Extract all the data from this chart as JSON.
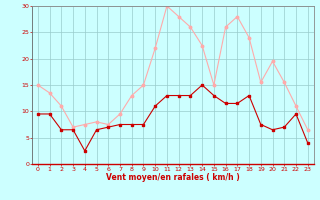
{
  "hours": [
    0,
    1,
    2,
    3,
    4,
    5,
    6,
    7,
    8,
    9,
    10,
    11,
    12,
    13,
    14,
    15,
    16,
    17,
    18,
    19,
    20,
    21,
    22,
    23
  ],
  "vent_moyen": [
    9.5,
    9.5,
    6.5,
    6.5,
    2.5,
    6.5,
    7.0,
    7.5,
    7.5,
    7.5,
    11.0,
    13.0,
    13.0,
    13.0,
    15.0,
    13.0,
    11.5,
    11.5,
    13.0,
    7.5,
    6.5,
    7.0,
    9.5,
    4.0
  ],
  "rafales": [
    15.0,
    13.5,
    11.0,
    7.0,
    7.5,
    8.0,
    7.5,
    9.5,
    13.0,
    15.0,
    22.0,
    30.0,
    28.0,
    26.0,
    22.5,
    15.0,
    26.0,
    28.0,
    24.0,
    15.5,
    19.5,
    15.5,
    11.0,
    6.5
  ],
  "ylim": [
    0,
    30
  ],
  "xlim": [
    -0.5,
    23.5
  ],
  "yticks": [
    0,
    5,
    10,
    15,
    20,
    25,
    30
  ],
  "xticks": [
    0,
    1,
    2,
    3,
    4,
    5,
    6,
    7,
    8,
    9,
    10,
    11,
    12,
    13,
    14,
    15,
    16,
    17,
    18,
    19,
    20,
    21,
    22,
    23
  ],
  "xlabel": "Vent moyen/en rafales ( km/h )",
  "color_moyen": "#cc0000",
  "color_rafales": "#ffaaaa",
  "bg_color": "#ccffff",
  "grid_color": "#99cccc"
}
